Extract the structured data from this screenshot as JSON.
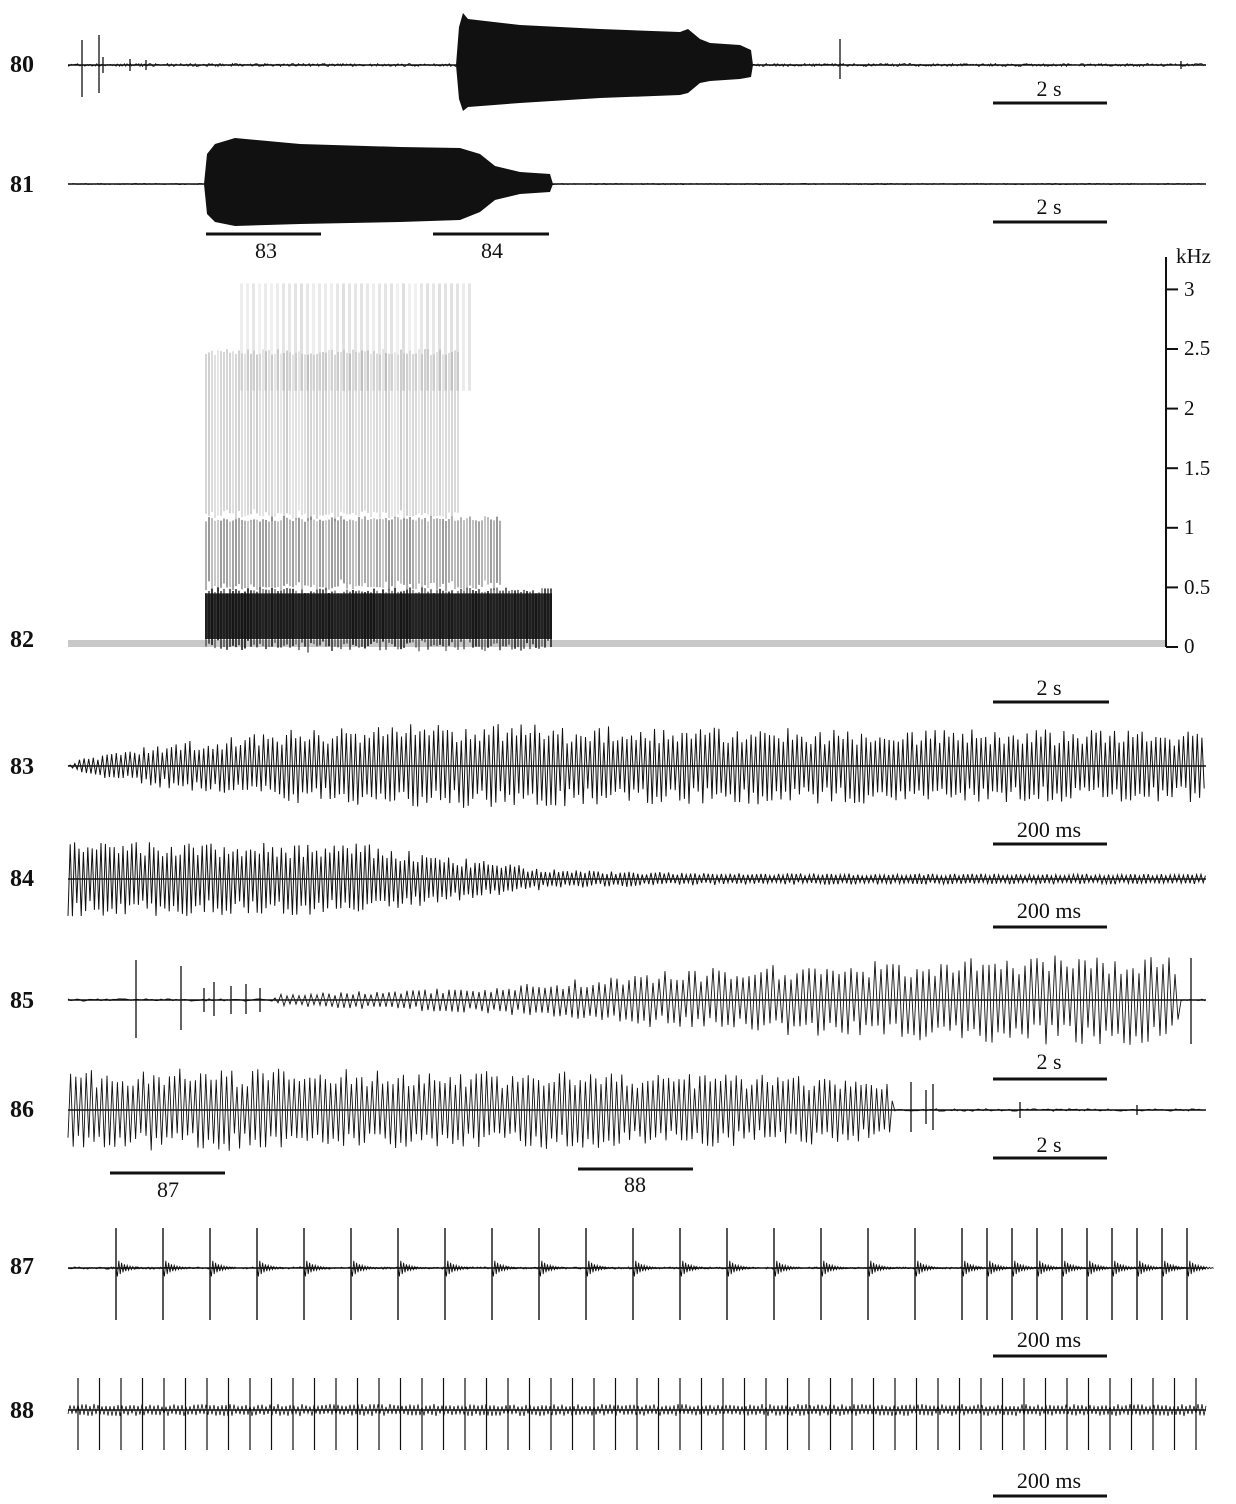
{
  "figure": {
    "panels": [
      {
        "id": "80",
        "kind": "oscillogram",
        "scale_bar": "2 s"
      },
      {
        "id": "81",
        "kind": "oscillogram",
        "scale_bar": "2 s",
        "segment_markers": [
          "83",
          "84"
        ]
      },
      {
        "id": "82",
        "kind": "spectrogram",
        "scale_bar": "2 s"
      },
      {
        "id": "83",
        "kind": "oscillogram",
        "scale_bar": "200 ms"
      },
      {
        "id": "84",
        "kind": "oscillogram",
        "scale_bar": "200 ms"
      },
      {
        "id": "85",
        "kind": "oscillogram",
        "scale_bar": "2 s"
      },
      {
        "id": "86",
        "kind": "oscillogram",
        "scale_bar": "2 s",
        "segment_markers": [
          "87",
          "88"
        ]
      },
      {
        "id": "87",
        "kind": "oscillogram",
        "scale_bar": "200 ms"
      },
      {
        "id": "88",
        "kind": "oscillogram",
        "scale_bar": "200 ms"
      }
    ]
  },
  "chart_data": {
    "type": "spectrogram",
    "panel": "82",
    "ylabel": "kHz",
    "yticks": [
      "0",
      "0.5",
      "1",
      "1.5",
      "2",
      "2.5",
      "3"
    ],
    "ylim": [
      0,
      3
    ],
    "scale_bar": "2 s",
    "energy_bands_khz": [
      {
        "from": 0,
        "to": 0.5,
        "level": "strong"
      },
      {
        "from": 0.5,
        "to": 1.1,
        "level": "medium"
      },
      {
        "from": 1.1,
        "to": 2.5,
        "level": "faint"
      }
    ]
  },
  "colors": {
    "trace": "#111111",
    "spectrogram_dark": "#1a1a1a",
    "background": "#ffffff"
  }
}
